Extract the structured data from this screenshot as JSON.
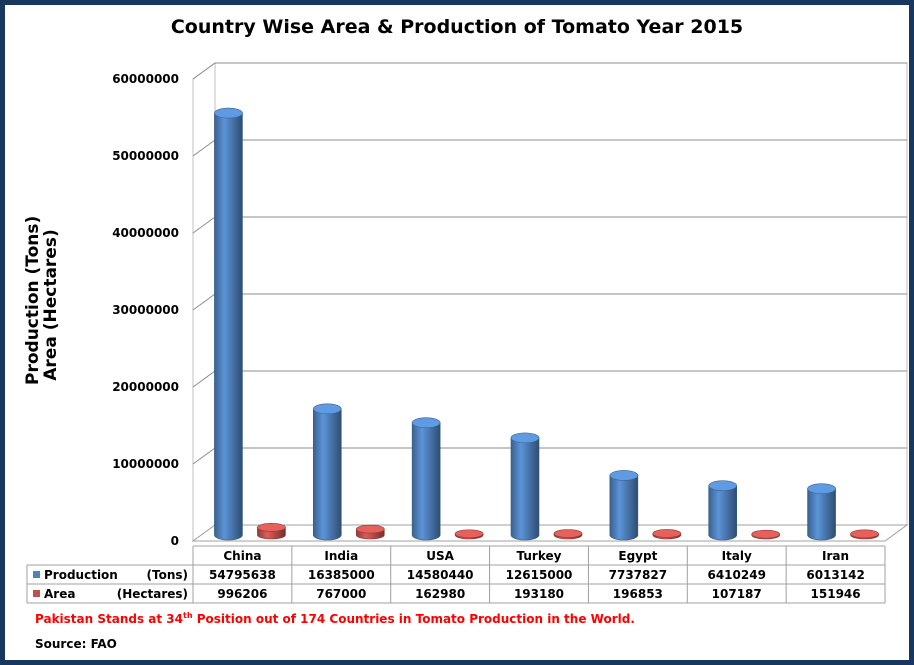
{
  "chart_data": {
    "type": "bar",
    "title": "Country Wise Area & Production of Tomato Year 2015",
    "ylabel_lines": [
      "Production (Tons)",
      "Area (Hectares)"
    ],
    "categories": [
      "China",
      "India",
      "USA",
      "Turkey",
      "Egypt",
      "Italy",
      "Iran"
    ],
    "series": [
      {
        "name": "Production",
        "unit_label": "(Tons)",
        "color": "#4f81bd",
        "values": [
          54795638,
          16385000,
          14580440,
          12615000,
          7737827,
          6410249,
          6013142
        ],
        "value_labels": [
          "54795638",
          "16385000",
          "14580440",
          "12615000",
          "7737827",
          "6410249",
          "6013142"
        ]
      },
      {
        "name": "Area",
        "unit_label": "(Hectares)",
        "color": "#c0504d",
        "values": [
          996206,
          767000,
          162980,
          193180,
          196853,
          107187,
          151946
        ],
        "value_labels": [
          "996206",
          "767000",
          "162980",
          "193180",
          "196853",
          "107187",
          "151946"
        ]
      }
    ],
    "ylim": [
      0,
      60000000
    ],
    "yticks": [
      0,
      10000000,
      20000000,
      30000000,
      40000000,
      50000000,
      60000000
    ],
    "ytick_labels": [
      "0",
      "10000000",
      "20000000",
      "30000000",
      "40000000",
      "50000000",
      "60000000"
    ],
    "grid": true,
    "legend": "data-table",
    "bar_shape": "3d-cylinder"
  },
  "footnote": {
    "before": "Pakistan Stands at 34",
    "sup": "th",
    "after": " Position out of 174 Countries in Tomato Production in the World."
  },
  "source": "Source: FAO",
  "colors": {
    "frame": "#17375e",
    "footnote": "#ff0000"
  }
}
